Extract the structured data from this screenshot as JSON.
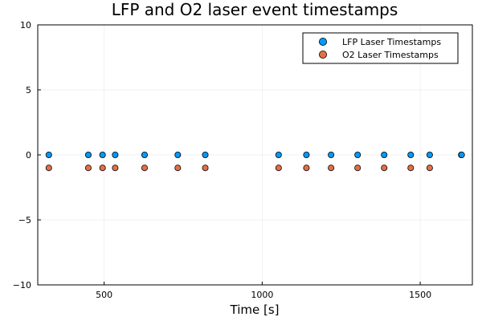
{
  "chart_data": {
    "type": "scatter",
    "title": "LFP and O2 laser event timestamps",
    "xlabel": "Time [s]",
    "ylabel": "",
    "xlim": [
      290,
      1665
    ],
    "ylim": [
      -10,
      10
    ],
    "xticks": [
      500,
      1000,
      1500
    ],
    "yticks": [
      -10,
      -5,
      0,
      5,
      10
    ],
    "xtick_labels": [
      "500",
      "1000",
      "1500"
    ],
    "ytick_labels": [
      "−10",
      "−5",
      "0",
      "5",
      "10"
    ],
    "grid": true,
    "legend_position": "top-right",
    "series": [
      {
        "name": "LFP Laser Timestamps",
        "color": "#009AFA",
        "x": [
          325,
          450,
          495,
          535,
          628,
          733,
          820,
          1052,
          1140,
          1218,
          1302,
          1386,
          1470,
          1530,
          1630,
          1631
        ],
        "y": [
          0,
          0,
          0,
          0,
          0,
          0,
          0,
          0,
          0,
          0,
          0,
          0,
          0,
          0,
          0,
          0
        ]
      },
      {
        "name": "O2 Laser Timestamps",
        "color": "#E26F46",
        "x": [
          325,
          450,
          495,
          535,
          628,
          733,
          820,
          1052,
          1140,
          1218,
          1302,
          1386,
          1470,
          1530
        ],
        "y": [
          -1,
          -1,
          -1,
          -1,
          -1,
          -1,
          -1,
          -1,
          -1,
          -1,
          -1,
          -1,
          -1,
          -1
        ]
      }
    ]
  }
}
